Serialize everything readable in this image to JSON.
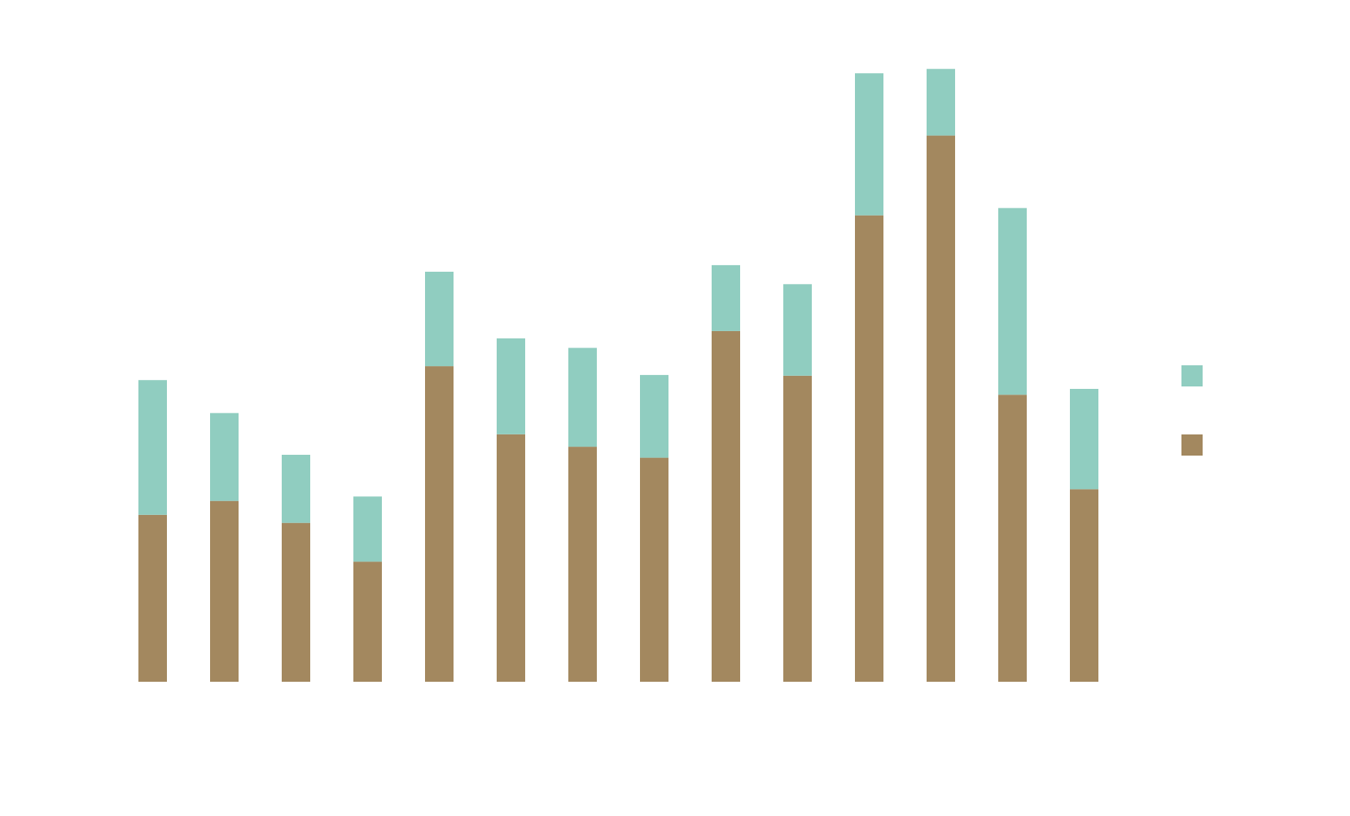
{
  "chart_data": {
    "type": "bar",
    "stacked": true,
    "orientation": "vertical",
    "categories": [
      "",
      "",
      "",
      "",
      "",
      "",
      "",
      "",
      "",
      "",
      "",
      "",
      "",
      ""
    ],
    "series": [
      {
        "color": "#A3885F",
        "values": [
          228,
          247,
          217,
          164,
          431,
          338,
          321,
          306,
          479,
          418,
          637,
          746,
          392,
          263
        ]
      },
      {
        "color": "#90CDC0",
        "values": [
          184,
          120,
          93,
          89,
          129,
          131,
          135,
          113,
          90,
          125,
          194,
          91,
          255,
          137
        ]
      }
    ],
    "ylim": [
      0,
      900
    ],
    "grid": false,
    "axes_visible": false,
    "legend": {
      "placement": "right",
      "entries": [
        {
          "color": "#90CDC0"
        },
        {
          "color": "#A3885F"
        }
      ]
    }
  }
}
